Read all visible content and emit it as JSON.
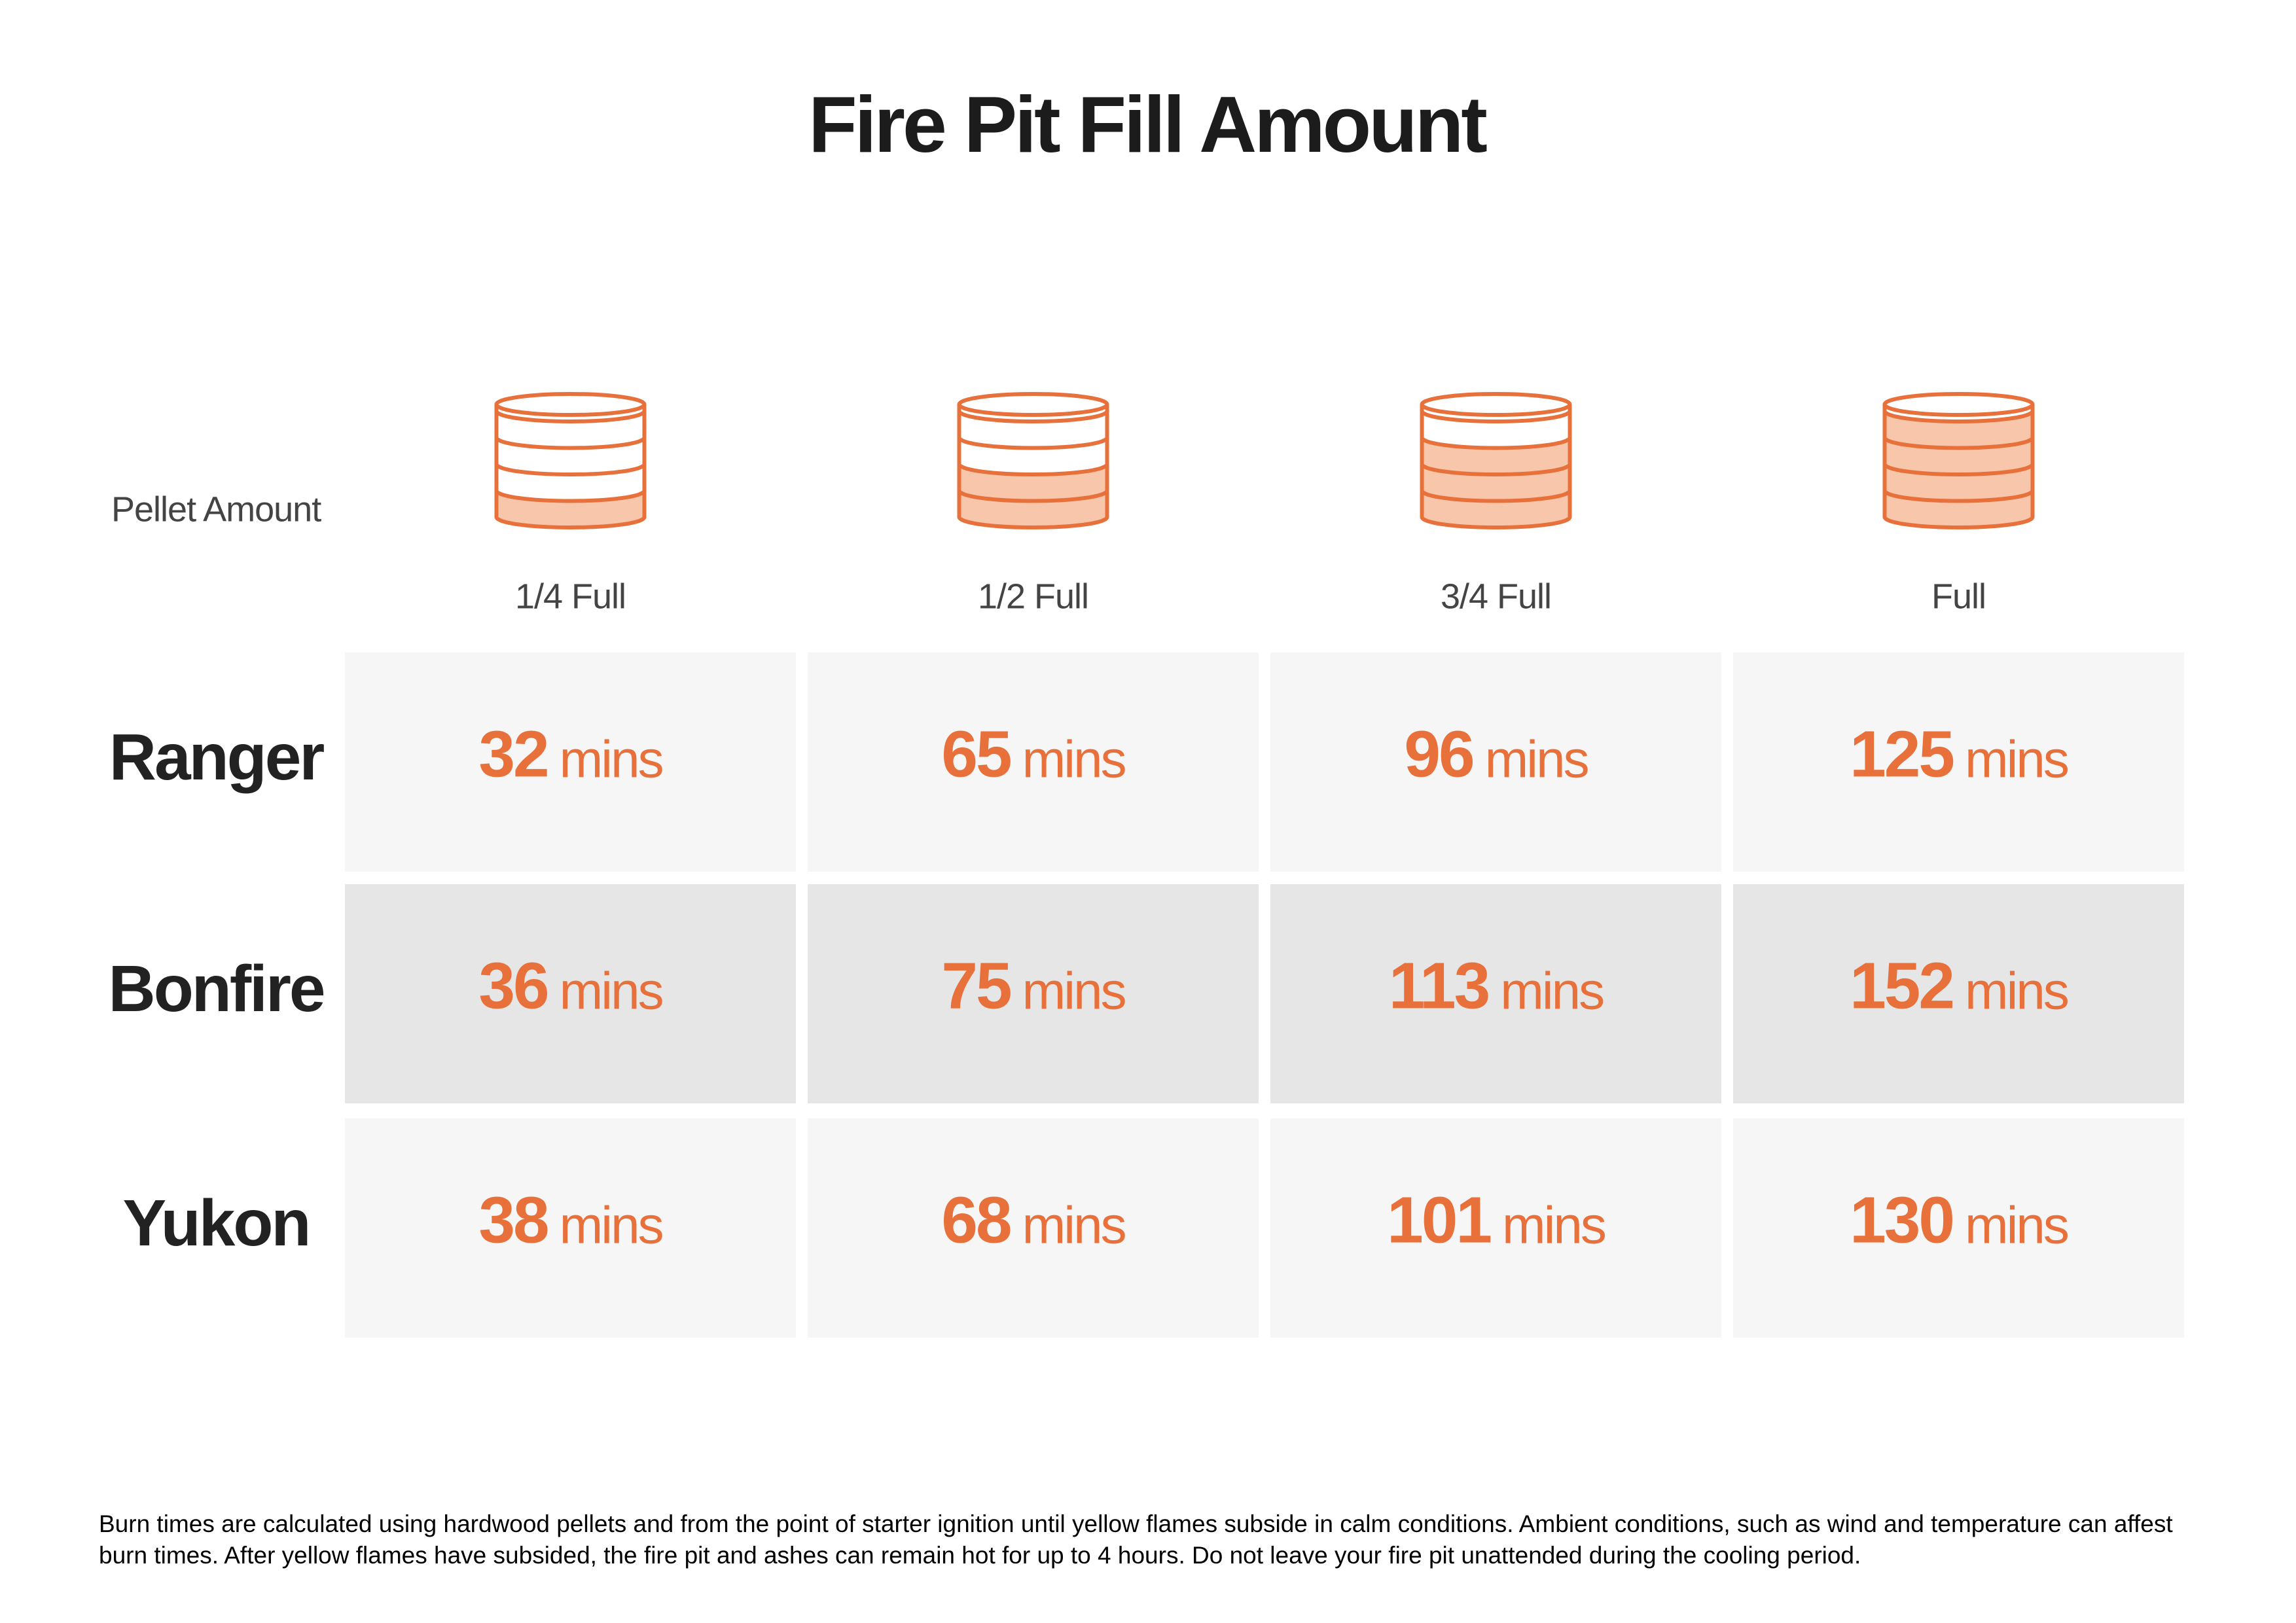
{
  "title": "Fire Pit Fill Amount",
  "header": {
    "label": "Pellet Amount",
    "columns": [
      "1/4 Full",
      "1/2 Full",
      "3/4 Full",
      "Full"
    ]
  },
  "rows": [
    {
      "label": "Ranger",
      "cells": [
        {
          "value": 32,
          "unit": "mins"
        },
        {
          "value": 65,
          "unit": "mins"
        },
        {
          "value": 96,
          "unit": "mins"
        },
        {
          "value": 125,
          "unit": "mins"
        }
      ]
    },
    {
      "label": "Bonfire",
      "cells": [
        {
          "value": 36,
          "unit": "mins"
        },
        {
          "value": 75,
          "unit": "mins"
        },
        {
          "value": 113,
          "unit": "mins"
        },
        {
          "value": 152,
          "unit": "mins"
        }
      ]
    },
    {
      "label": "Yukon",
      "cells": [
        {
          "value": 38,
          "unit": "mins"
        },
        {
          "value": 68,
          "unit": "mins"
        },
        {
          "value": 101,
          "unit": "mins"
        },
        {
          "value": 130,
          "unit": "mins"
        }
      ]
    }
  ],
  "footnote": "Burn times are calculated using hardwood pellets and from the point of starter ignition until yellow flames subside in calm conditions. Ambient conditions, such as wind and temperature can affest burn times. After yellow flames have subsided, the fire pit and ashes can remain hot for up to 4 hours. Do not leave your fire pit unattended during the cooling period."
}
